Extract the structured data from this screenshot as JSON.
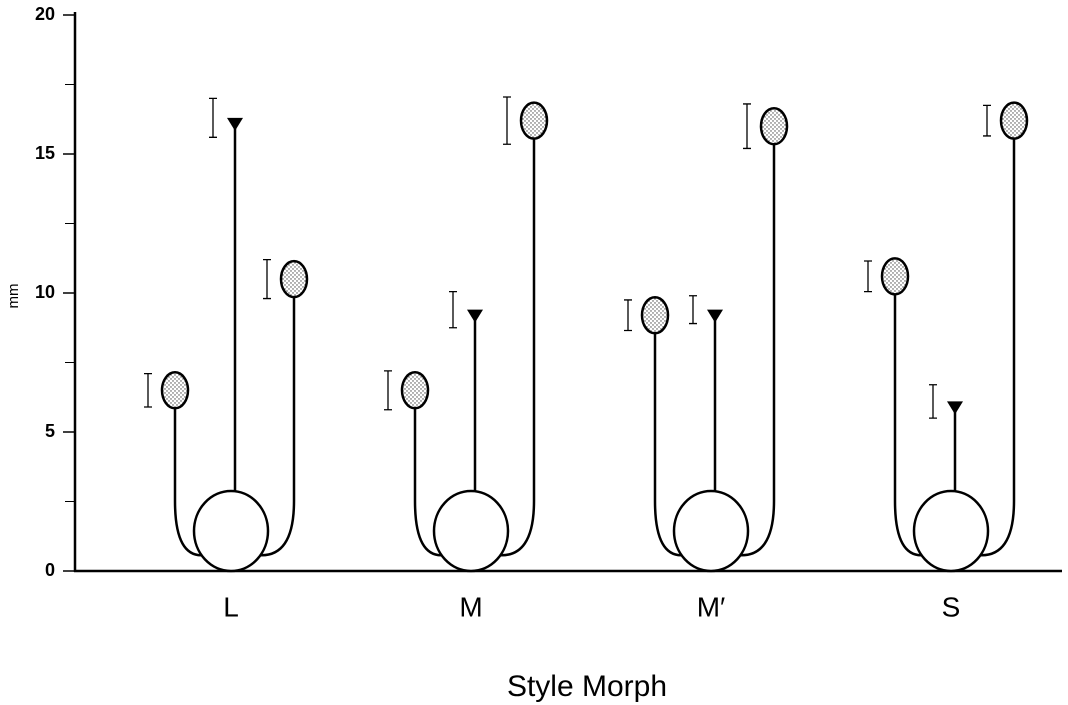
{
  "chart_data": {
    "type": "morph",
    "categories": [
      "L",
      "M",
      "M′",
      "S"
    ],
    "xlabel": "Style Morph",
    "ylabel": "mm",
    "ylim": [
      0,
      20
    ],
    "yticks": [
      0,
      5,
      10,
      15,
      20
    ],
    "series": [
      {
        "marker": "ellipse",
        "position": "left",
        "values": [
          6.5,
          6.5,
          9.2,
          10.6
        ],
        "errors": [
          0.6,
          0.7,
          0.55,
          0.55
        ]
      },
      {
        "marker": "triangle",
        "position": "center",
        "values": [
          16.3,
          9.4,
          9.4,
          6.1
        ],
        "errors": [
          0.7,
          0.65,
          0.5,
          0.6
        ]
      },
      {
        "marker": "ellipse",
        "position": "right",
        "values": [
          10.5,
          16.2,
          16.0,
          16.2
        ],
        "errors": [
          0.7,
          0.85,
          0.8,
          0.55
        ]
      }
    ]
  }
}
